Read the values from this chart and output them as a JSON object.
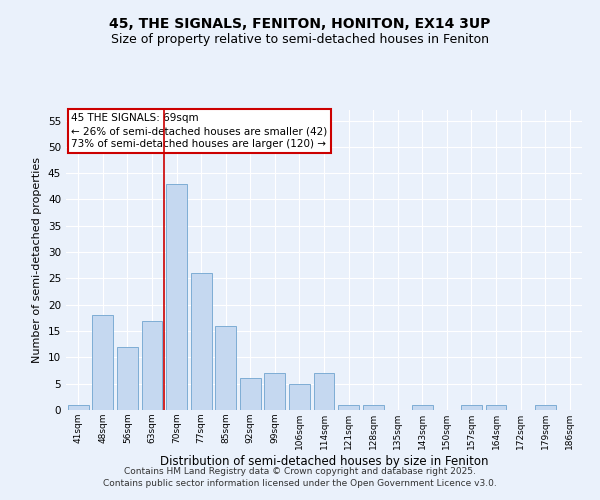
{
  "title": "45, THE SIGNALS, FENITON, HONITON, EX14 3UP",
  "subtitle": "Size of property relative to semi-detached houses in Feniton",
  "xlabel": "Distribution of semi-detached houses by size in Feniton",
  "ylabel": "Number of semi-detached properties",
  "categories": [
    "41sqm",
    "48sqm",
    "56sqm",
    "63sqm",
    "70sqm",
    "77sqm",
    "85sqm",
    "92sqm",
    "99sqm",
    "106sqm",
    "114sqm",
    "121sqm",
    "128sqm",
    "135sqm",
    "143sqm",
    "150sqm",
    "157sqm",
    "164sqm",
    "172sqm",
    "179sqm",
    "186sqm"
  ],
  "values": [
    1,
    18,
    12,
    17,
    43,
    26,
    16,
    6,
    7,
    5,
    7,
    1,
    1,
    0,
    1,
    0,
    1,
    1,
    0,
    1,
    0
  ],
  "bar_color": "#c5d8f0",
  "bar_edge_color": "#7eadd4",
  "highlight_index": 4,
  "highlight_line_color": "#cc0000",
  "annotation_text": "45 THE SIGNALS: 69sqm\n← 26% of semi-detached houses are smaller (42)\n73% of semi-detached houses are larger (120) →",
  "annotation_box_color": "#ffffff",
  "annotation_box_edge_color": "#cc0000",
  "ylim": [
    0,
    57
  ],
  "yticks": [
    0,
    5,
    10,
    15,
    20,
    25,
    30,
    35,
    40,
    45,
    50,
    55
  ],
  "background_color": "#eaf1fb",
  "grid_color": "#ffffff",
  "footer": "Contains HM Land Registry data © Crown copyright and database right 2025.\nContains public sector information licensed under the Open Government Licence v3.0.",
  "title_fontsize": 10,
  "subtitle_fontsize": 9,
  "annotation_fontsize": 7.5,
  "footer_fontsize": 6.5,
  "ylabel_fontsize": 8,
  "xlabel_fontsize": 8.5
}
